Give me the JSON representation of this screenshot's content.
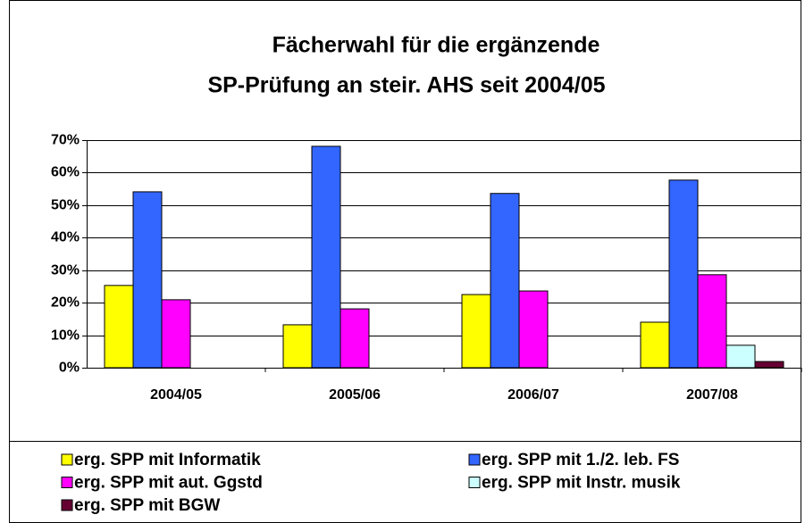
{
  "chart_data": {
    "type": "bar",
    "title": [
      "Fächerwahl für die ergänzende",
      "SP-Prüfung an steir. AHS seit 2004/05"
    ],
    "categories": [
      "2004/05",
      "2005/06",
      "2006/07",
      "2007/08"
    ],
    "series": [
      {
        "name": "erg. SPP mit Informatik",
        "color": "#ffff00",
        "values": [
          25.3,
          13.2,
          22.5,
          14
        ]
      },
      {
        "name": "erg. SPP mit 1./2. leb. FS",
        "color": "#3366ff",
        "values": [
          54.1,
          68.1,
          53.6,
          57.7
        ]
      },
      {
        "name": "erg. SPP mit aut. Ggstd",
        "color": "#ff00ff",
        "values": [
          20.9,
          18.1,
          23.6,
          28.6
        ]
      },
      {
        "name": "erg. SPP mit Instr. musik",
        "color": "#ccffff",
        "values": [
          0,
          0,
          0,
          6.9
        ]
      },
      {
        "name": "erg. SPP mit BGW",
        "color": "#660033",
        "values": [
          0,
          0,
          0,
          1.9
        ]
      }
    ],
    "ylim": [
      0,
      70
    ],
    "yticks": [
      {
        "value": 0,
        "label": "0%"
      },
      {
        "value": 10,
        "label": "10%"
      },
      {
        "value": 20,
        "label": "20%"
      },
      {
        "value": 30,
        "label": "30%"
      },
      {
        "value": 40,
        "label": "40%"
      },
      {
        "value": 50,
        "label": "50%"
      },
      {
        "value": 60,
        "label": "60%"
      },
      {
        "value": 70,
        "label": "70%"
      }
    ],
    "grid": true
  }
}
